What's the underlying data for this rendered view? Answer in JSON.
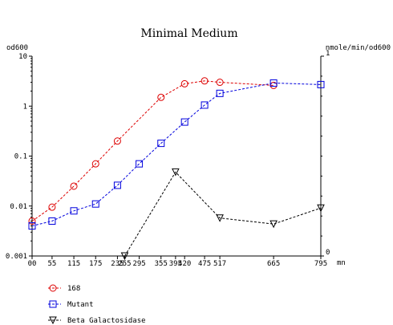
{
  "chart_data": {
    "type": "line",
    "title": "Minimal Medium",
    "left_axis": {
      "label": "od600",
      "scale": "log",
      "range": [
        0.001,
        10
      ],
      "tick_labels": [
        "10",
        "1",
        "0.1",
        "0.01",
        "0.001"
      ]
    },
    "right_axis": {
      "label": "nmole/min/od600",
      "scale": "linear",
      "range": [
        0,
        1
      ],
      "tick_labels": [
        "1",
        "0"
      ]
    },
    "x_axis": {
      "unit": "mn",
      "range": [
        0,
        795
      ],
      "ticks": [
        0,
        55,
        115,
        175,
        235,
        255,
        295,
        355,
        395,
        420,
        475,
        517,
        665,
        795
      ],
      "tick_labels": [
        "00",
        "55",
        "115",
        "175",
        "235",
        "255",
        "295",
        "355",
        "395",
        "420",
        "475",
        "517",
        "665",
        "795"
      ]
    },
    "series": [
      {
        "name": "168",
        "axis": "left",
        "marker": "circle",
        "color": "#dd0000",
        "x": [
          0,
          55,
          115,
          175,
          235,
          355,
          420,
          475,
          517,
          665
        ],
        "y": [
          0.005,
          0.0095,
          0.025,
          0.07,
          0.2,
          1.5,
          2.8,
          3.2,
          3.0,
          2.6
        ]
      },
      {
        "name": "Mutant",
        "axis": "left",
        "marker": "square",
        "color": "#0000dd",
        "x": [
          0,
          55,
          115,
          175,
          235,
          295,
          355,
          420,
          475,
          517,
          665,
          795
        ],
        "y": [
          0.004,
          0.005,
          0.008,
          0.011,
          0.026,
          0.07,
          0.18,
          0.48,
          1.05,
          1.8,
          2.9,
          2.7
        ]
      },
      {
        "name": "Beta Galactosidase",
        "axis": "right",
        "marker": "triangle-down",
        "color": "#000000",
        "x": [
          255,
          395,
          517,
          665,
          795
        ],
        "y": [
          0.0,
          0.42,
          0.19,
          0.16,
          0.24
        ]
      }
    ],
    "legend_position": "bottom-left",
    "grid": false
  }
}
